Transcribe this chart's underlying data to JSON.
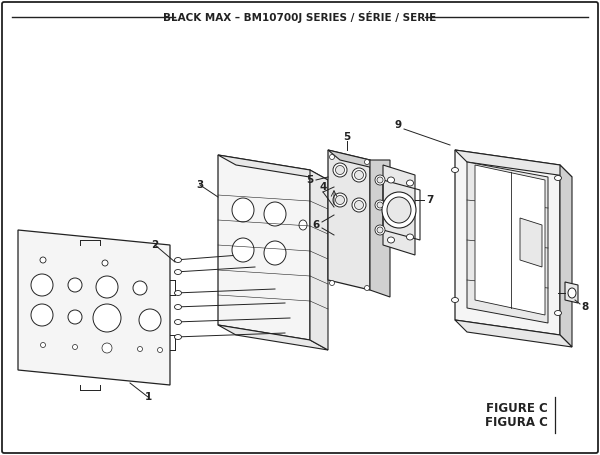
{
  "title": "BLACK MAX – BM10700J SERIES / SÉRIE / SERIE",
  "figure_label": "FIGURE C",
  "figura_label": "FIGURA C",
  "bg_color": "#ffffff",
  "lc": "#222222",
  "fill_light": "#f5f5f5",
  "fill_mid": "#e8e8e8",
  "fill_dark": "#d0d0d0"
}
